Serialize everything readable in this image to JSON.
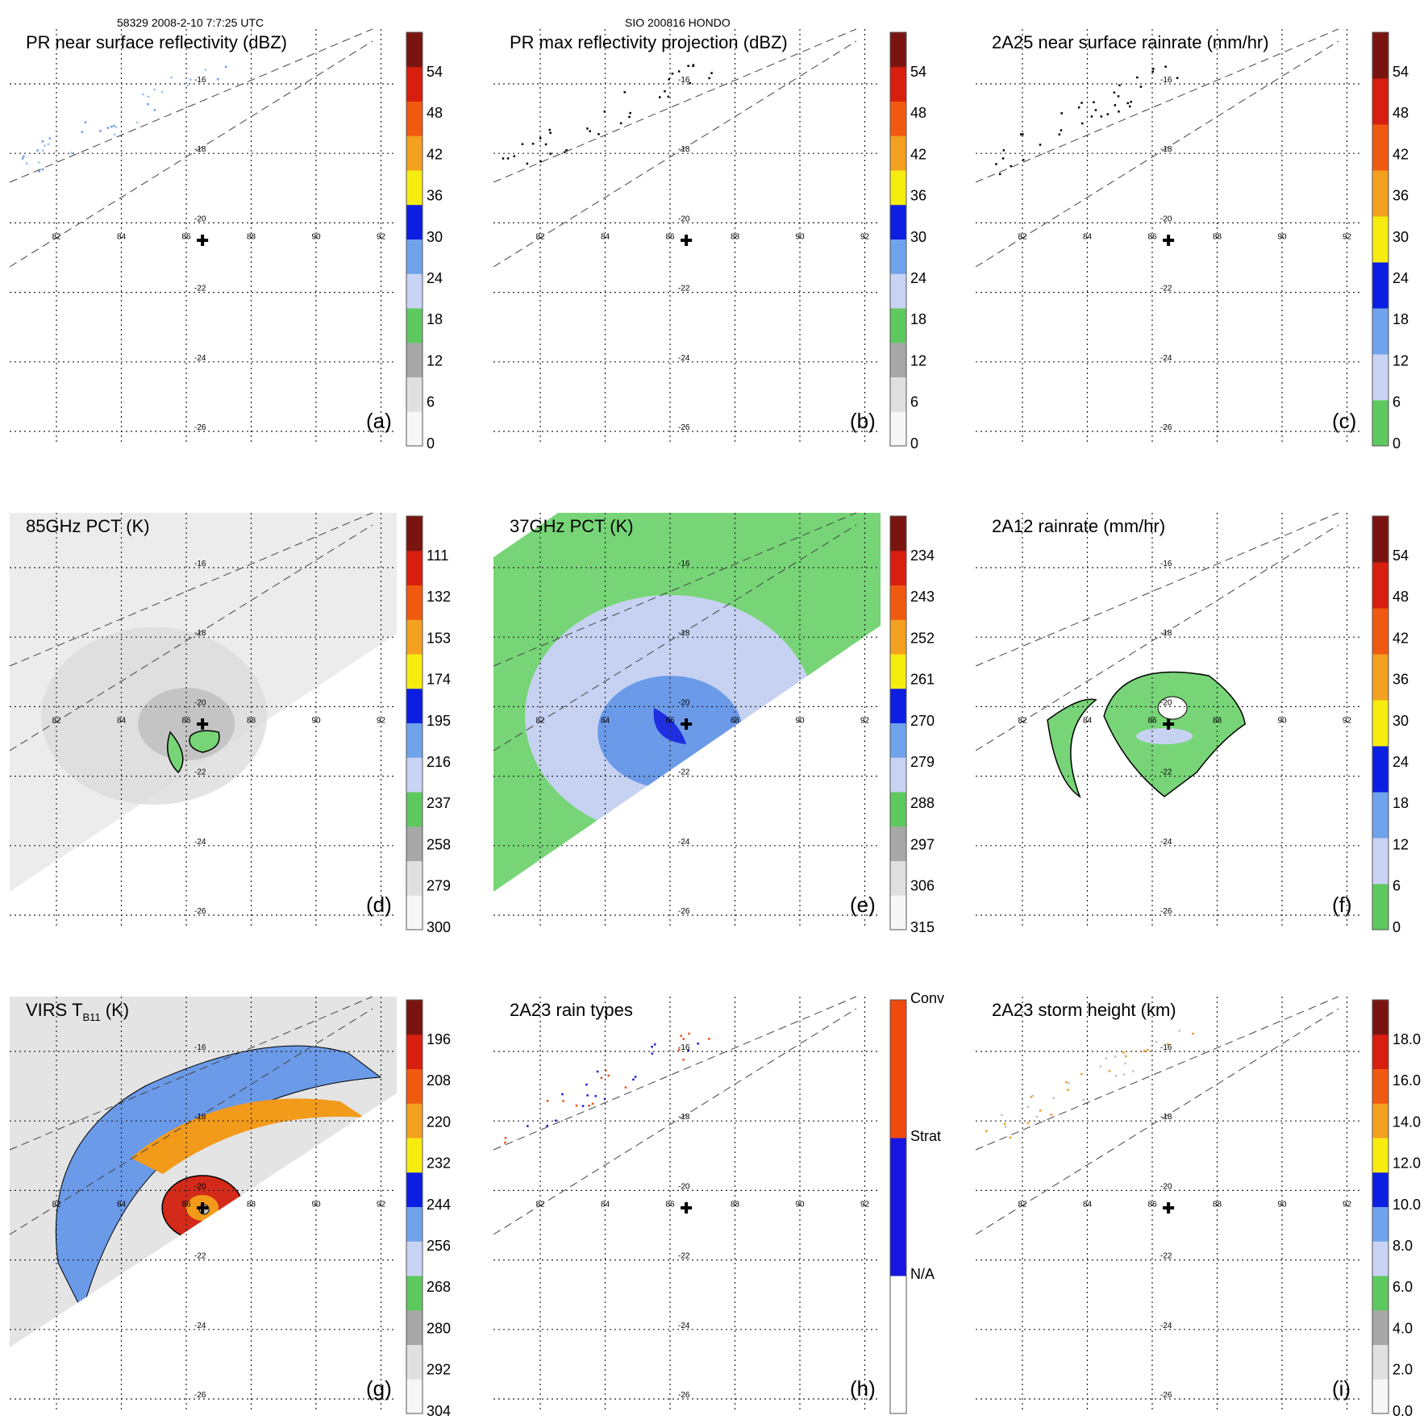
{
  "header": {
    "left": "58329 2008-2-10 7:7:25 UTC",
    "center": "SIO 200816 HONDO"
  },
  "colors": {
    "grid": "#222222",
    "swath_edge": "#444444",
    "green": "#77d577",
    "light_blue": "#c7d2f2",
    "mid_blue": "#6b9ae8",
    "blue": "#1f2fe0",
    "gray": "#bdbdbd",
    "light_gray": "#ececec",
    "yellow": "#f5e600",
    "orange": "#f29a1a",
    "red": "#d42a1a",
    "dark_red": "#6b1410",
    "rain_conv": "#f04a0e",
    "rain_strat": "#1616e0"
  },
  "chart_data": [
    {
      "id": "a",
      "type": "heatmap",
      "title": "PR near surface reflectivity (dBZ)",
      "panel_label": "(a)",
      "lon_ticks": [
        "82",
        "84",
        "86",
        "88",
        "90",
        "92"
      ],
      "lat_ticks": [
        "-16",
        "-18",
        "-20",
        "-22",
        "-24",
        "-26"
      ],
      "storm_center": {
        "lon": 86.5,
        "lat": -20.5
      },
      "colorbar": {
        "labels": [
          "54",
          "48",
          "42",
          "36",
          "30",
          "24",
          "18",
          "12",
          "6",
          "0"
        ],
        "segments": [
          "#f7f7f7",
          "#e0e0e0",
          "#a8a8a8",
          "#5ec95e",
          "#c9d3f3",
          "#6fa4ec",
          "#0b1ee2",
          "#f7ec10",
          "#f4a020",
          "#f05a10",
          "#d81e0e",
          "#7a1410"
        ]
      }
    },
    {
      "id": "b",
      "type": "heatmap",
      "title": "PR max reflectivity projection (dBZ)",
      "panel_label": "(b)",
      "lon_ticks": [
        "82",
        "84",
        "86",
        "88",
        "90",
        "92"
      ],
      "lat_ticks": [
        "-16",
        "-18",
        "-20",
        "-22",
        "-24",
        "-26"
      ],
      "storm_center": {
        "lon": 86.5,
        "lat": -20.5
      },
      "colorbar": {
        "labels": [
          "54",
          "48",
          "42",
          "36",
          "30",
          "24",
          "18",
          "12",
          "6",
          "0"
        ],
        "segments": [
          "#f7f7f7",
          "#e0e0e0",
          "#a8a8a8",
          "#5ec95e",
          "#c9d3f3",
          "#6fa4ec",
          "#0b1ee2",
          "#f7ec10",
          "#f4a020",
          "#f05a10",
          "#d81e0e",
          "#7a1410"
        ]
      }
    },
    {
      "id": "c",
      "type": "heatmap",
      "title": "2A25 near surface rainrate (mm/hr)",
      "panel_label": "(c)",
      "lon_ticks": [
        "82",
        "84",
        "86",
        "88",
        "90",
        "92"
      ],
      "lat_ticks": [
        "-16",
        "-18",
        "-20",
        "-22",
        "-24",
        "-26"
      ],
      "storm_center": {
        "lon": 86.5,
        "lat": -20.5
      },
      "colorbar": {
        "labels": [
          "54",
          "48",
          "42",
          "36",
          "30",
          "24",
          "18",
          "12",
          "6",
          "0"
        ],
        "segments": [
          "#5ec95e",
          "#c9d3f3",
          "#6fa4ec",
          "#0b1ee2",
          "#f7ec10",
          "#f4a020",
          "#f05a10",
          "#d81e0e",
          "#7a1410"
        ]
      }
    },
    {
      "id": "d",
      "type": "heatmap",
      "title": "85GHz PCT (K)",
      "panel_label": "(d)",
      "lon_ticks": [
        "82",
        "84",
        "86",
        "88",
        "90",
        "92"
      ],
      "lat_ticks": [
        "-16",
        "-18",
        "-20",
        "-22",
        "-24",
        "-26"
      ],
      "storm_center": {
        "lon": 86.5,
        "lat": -20.5
      },
      "colorbar": {
        "labels": [
          "111",
          "132",
          "153",
          "174",
          "195",
          "216",
          "237",
          "258",
          "279",
          "300"
        ],
        "segments": [
          "#f7f7f7",
          "#e0e0e0",
          "#a8a8a8",
          "#5ec95e",
          "#c9d3f3",
          "#6fa4ec",
          "#0b1ee2",
          "#f7ec10",
          "#f4a020",
          "#f05a10",
          "#d81e0e",
          "#7a1410"
        ]
      }
    },
    {
      "id": "e",
      "type": "heatmap",
      "title": "37GHz PCT (K)",
      "panel_label": "(e)",
      "lon_ticks": [
        "82",
        "84",
        "86",
        "88",
        "90",
        "92"
      ],
      "lat_ticks": [
        "-16",
        "-18",
        "-20",
        "-22",
        "-24",
        "-26"
      ],
      "storm_center": {
        "lon": 86.5,
        "lat": -20.5
      },
      "colorbar": {
        "labels": [
          "234",
          "243",
          "252",
          "261",
          "270",
          "279",
          "288",
          "297",
          "306",
          "315"
        ],
        "segments": [
          "#f7f7f7",
          "#e0e0e0",
          "#a8a8a8",
          "#5ec95e",
          "#c9d3f3",
          "#6fa4ec",
          "#0b1ee2",
          "#f7ec10",
          "#f4a020",
          "#f05a10",
          "#d81e0e",
          "#7a1410"
        ]
      }
    },
    {
      "id": "f",
      "type": "heatmap",
      "title": "2A12 rainrate (mm/hr)",
      "panel_label": "(f)",
      "lon_ticks": [
        "82",
        "84",
        "86",
        "88",
        "90",
        "92"
      ],
      "lat_ticks": [
        "-16",
        "-18",
        "-20",
        "-22",
        "-24",
        "-26"
      ],
      "storm_center": {
        "lon": 86.5,
        "lat": -20.5
      },
      "colorbar": {
        "labels": [
          "54",
          "48",
          "42",
          "36",
          "30",
          "24",
          "18",
          "12",
          "6",
          "0"
        ],
        "segments": [
          "#5ec95e",
          "#c9d3f3",
          "#6fa4ec",
          "#0b1ee2",
          "#f7ec10",
          "#f4a020",
          "#f05a10",
          "#d81e0e",
          "#7a1410"
        ]
      }
    },
    {
      "id": "g",
      "type": "heatmap",
      "title": "VIRS T",
      "title_subscript": "B11",
      "title_suffix": " (K)",
      "panel_label": "(g)",
      "lon_ticks": [
        "82",
        "84",
        "86",
        "88",
        "90",
        "92"
      ],
      "lat_ticks": [
        "-16",
        "-18",
        "-20",
        "-22",
        "-24",
        "-26"
      ],
      "storm_center": {
        "lon": 86.5,
        "lat": -20.5
      },
      "colorbar": {
        "labels": [
          "196",
          "208",
          "220",
          "232",
          "244",
          "256",
          "268",
          "280",
          "292",
          "304"
        ],
        "segments": [
          "#f7f7f7",
          "#e0e0e0",
          "#a8a8a8",
          "#5ec95e",
          "#c9d3f3",
          "#6fa4ec",
          "#0b1ee2",
          "#f7ec10",
          "#f4a020",
          "#f05a10",
          "#d81e0e",
          "#7a1410"
        ]
      }
    },
    {
      "id": "h",
      "type": "heatmap",
      "title": "2A23 rain types",
      "panel_label": "(h)",
      "lon_ticks": [
        "82",
        "84",
        "86",
        "88",
        "90",
        "92"
      ],
      "lat_ticks": [
        "-16",
        "-18",
        "-20",
        "-22",
        "-24",
        "-26"
      ],
      "storm_center": {
        "lon": 86.5,
        "lat": -20.5
      },
      "colorbar": {
        "categorical": true,
        "labels": [
          "Conv",
          "Strat",
          "N/A"
        ],
        "segments": [
          "#ffffff",
          "#1616e0",
          "#f04a0e"
        ]
      }
    },
    {
      "id": "i",
      "type": "heatmap",
      "title": "2A23 storm height (km)",
      "panel_label": "(i)",
      "lon_ticks": [
        "82",
        "84",
        "86",
        "88",
        "90",
        "92"
      ],
      "lat_ticks": [
        "-16",
        "-18",
        "-20",
        "-22",
        "-24",
        "-26"
      ],
      "storm_center": {
        "lon": 86.5,
        "lat": -20.5
      },
      "colorbar": {
        "labels": [
          "18.0",
          "16.0",
          "14.0",
          "12.0",
          "10.0",
          "8.0",
          "6.0",
          "4.0",
          "2.0",
          "0.0"
        ],
        "segments": [
          "#f7f7f7",
          "#e0e0e0",
          "#a8a8a8",
          "#5ec95e",
          "#c9d3f3",
          "#6fa4ec",
          "#0b1ee2",
          "#f7ec10",
          "#f4a020",
          "#f05a10",
          "#d81e0e",
          "#7a1410"
        ]
      }
    }
  ]
}
